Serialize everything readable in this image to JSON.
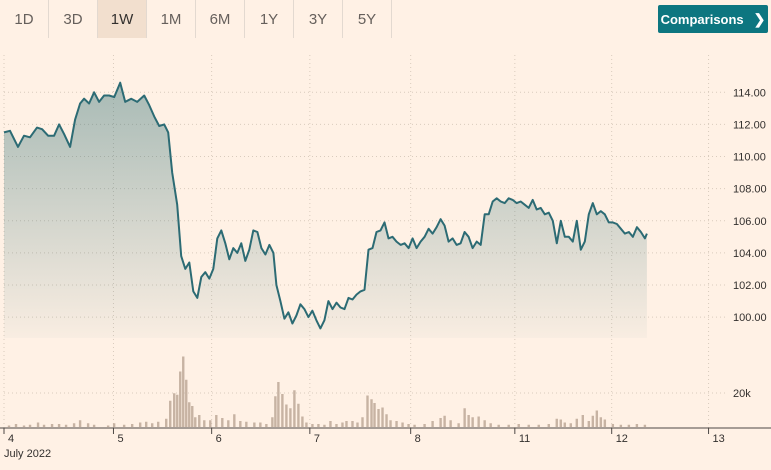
{
  "toolbar": {
    "ranges": [
      "1D",
      "3D",
      "1W",
      "1M",
      "6M",
      "1Y",
      "3Y",
      "5Y"
    ],
    "active_range": "1W",
    "comparisons_label": "Comparisons",
    "comparisons_icon": "chevron-right-icon"
  },
  "colors": {
    "background": "#fff1e5",
    "line": "#2c6b74",
    "volume": "#c7b3a3",
    "button": "#0d7680"
  },
  "chart_data": {
    "type": "line",
    "series_type": "price-with-volume",
    "y_ticks": [
      "100.00",
      "102.00",
      "104.00",
      "106.00",
      "108.00",
      "110.00",
      "112.00",
      "114.00"
    ],
    "ylim": [
      98.7,
      115.7
    ],
    "volume_tick": "20k",
    "x_ticks": [
      "4",
      "5",
      "6",
      "7",
      "8",
      "11",
      "12",
      "13"
    ],
    "x_sublabel": "July 2022",
    "grid": true,
    "price": [
      [
        0.0,
        111.5
      ],
      [
        0.6,
        111.6
      ],
      [
        1.4,
        110.6
      ],
      [
        2.0,
        111.3
      ],
      [
        2.6,
        111.2
      ],
      [
        3.3,
        111.8
      ],
      [
        3.8,
        111.7
      ],
      [
        4.4,
        111.3
      ],
      [
        5.0,
        111.3
      ],
      [
        5.5,
        112.0
      ],
      [
        6.0,
        111.4
      ],
      [
        6.6,
        110.6
      ],
      [
        7.1,
        112.3
      ],
      [
        7.6,
        113.3
      ],
      [
        8.0,
        113.6
      ],
      [
        8.5,
        113.3
      ],
      [
        9.0,
        114.0
      ],
      [
        9.5,
        113.4
      ],
      [
        10.0,
        113.8
      ],
      [
        10.5,
        113.8
      ],
      [
        11.0,
        113.7
      ],
      [
        11.6,
        114.6
      ],
      [
        12.1,
        113.4
      ],
      [
        12.7,
        113.6
      ],
      [
        13.3,
        113.4
      ],
      [
        14.0,
        113.8
      ],
      [
        14.5,
        113.2
      ],
      [
        15.0,
        112.5
      ],
      [
        15.5,
        111.9
      ],
      [
        16.0,
        112.0
      ],
      [
        16.4,
        111.5
      ],
      [
        16.8,
        109.0
      ],
      [
        17.3,
        107.0
      ],
      [
        17.7,
        103.8
      ],
      [
        18.1,
        103.0
      ],
      [
        18.5,
        103.4
      ],
      [
        18.9,
        101.6
      ],
      [
        19.3,
        101.2
      ],
      [
        19.7,
        102.5
      ],
      [
        20.1,
        102.8
      ],
      [
        20.5,
        102.4
      ],
      [
        20.9,
        103.0
      ],
      [
        21.3,
        104.9
      ],
      [
        21.7,
        105.4
      ],
      [
        22.1,
        104.6
      ],
      [
        22.5,
        103.6
      ],
      [
        22.9,
        104.3
      ],
      [
        23.3,
        104.0
      ],
      [
        23.7,
        104.6
      ],
      [
        24.1,
        103.5
      ],
      [
        24.5,
        104.2
      ],
      [
        24.9,
        105.4
      ],
      [
        25.3,
        105.3
      ],
      [
        25.7,
        104.3
      ],
      [
        26.1,
        103.9
      ],
      [
        26.5,
        104.5
      ],
      [
        26.9,
        104.0
      ],
      [
        27.2,
        102.0
      ],
      [
        27.6,
        101.0
      ],
      [
        28.0,
        99.9
      ],
      [
        28.4,
        100.3
      ],
      [
        28.8,
        99.6
      ],
      [
        29.2,
        100.1
      ],
      [
        29.6,
        100.8
      ],
      [
        30.0,
        100.5
      ],
      [
        30.4,
        100.0
      ],
      [
        30.8,
        100.4
      ],
      [
        31.2,
        99.8
      ],
      [
        31.6,
        99.3
      ],
      [
        32.0,
        99.8
      ],
      [
        32.4,
        101.0
      ],
      [
        32.8,
        100.5
      ],
      [
        33.2,
        100.9
      ],
      [
        33.6,
        100.6
      ],
      [
        34.0,
        100.5
      ],
      [
        34.4,
        101.2
      ],
      [
        34.8,
        101.1
      ],
      [
        35.2,
        101.4
      ],
      [
        35.6,
        101.6
      ],
      [
        36.0,
        101.7
      ],
      [
        36.4,
        104.2
      ],
      [
        36.8,
        104.3
      ],
      [
        37.2,
        105.3
      ],
      [
        37.6,
        105.4
      ],
      [
        38.0,
        105.9
      ],
      [
        38.4,
        104.9
      ],
      [
        38.8,
        105.0
      ],
      [
        39.2,
        104.7
      ],
      [
        39.6,
        104.5
      ],
      [
        40.0,
        104.6
      ],
      [
        40.4,
        104.3
      ],
      [
        40.8,
        104.9
      ],
      [
        41.2,
        104.3
      ],
      [
        41.6,
        104.7
      ],
      [
        42.0,
        105.0
      ],
      [
        42.4,
        105.5
      ],
      [
        42.8,
        105.2
      ],
      [
        43.2,
        105.6
      ],
      [
        43.6,
        106.1
      ],
      [
        44.0,
        105.7
      ],
      [
        44.4,
        104.7
      ],
      [
        44.8,
        104.9
      ],
      [
        45.2,
        104.5
      ],
      [
        45.6,
        104.6
      ],
      [
        46.0,
        105.3
      ],
      [
        46.4,
        105.0
      ],
      [
        46.8,
        104.3
      ],
      [
        47.2,
        104.7
      ],
      [
        47.6,
        104.5
      ],
      [
        48.0,
        106.4
      ],
      [
        48.4,
        106.4
      ],
      [
        48.8,
        107.2
      ],
      [
        49.2,
        107.4
      ],
      [
        49.6,
        107.2
      ],
      [
        50.0,
        107.1
      ],
      [
        50.4,
        107.4
      ],
      [
        50.8,
        107.3
      ],
      [
        51.2,
        107.1
      ],
      [
        51.6,
        107.2
      ],
      [
        52.0,
        107.0
      ],
      [
        52.4,
        106.8
      ],
      [
        52.8,
        107.3
      ],
      [
        53.2,
        106.7
      ],
      [
        53.6,
        106.8
      ],
      [
        54.0,
        106.4
      ],
      [
        54.4,
        106.5
      ],
      [
        54.8,
        106.0
      ],
      [
        55.2,
        104.6
      ],
      [
        55.6,
        106.0
      ],
      [
        56.0,
        105.0
      ],
      [
        56.4,
        105.0
      ],
      [
        56.8,
        104.7
      ],
      [
        57.2,
        106.0
      ],
      [
        57.6,
        104.2
      ],
      [
        58.0,
        104.7
      ],
      [
        58.4,
        106.4
      ],
      [
        58.8,
        107.1
      ],
      [
        59.2,
        106.4
      ],
      [
        59.6,
        106.6
      ],
      [
        60.0,
        106.4
      ],
      [
        60.4,
        105.9
      ],
      [
        60.8,
        105.9
      ],
      [
        61.2,
        105.8
      ],
      [
        61.6,
        105.5
      ],
      [
        62.0,
        105.2
      ],
      [
        62.4,
        105.3
      ],
      [
        62.8,
        105.0
      ],
      [
        63.2,
        105.6
      ],
      [
        63.6,
        105.3
      ],
      [
        64.0,
        104.9
      ],
      [
        64.2,
        105.2
      ]
    ],
    "volume": [
      [
        0.5,
        0.2
      ],
      [
        1.2,
        0.4
      ],
      [
        2.0,
        0.2
      ],
      [
        2.6,
        0.3
      ],
      [
        3.4,
        0.6
      ],
      [
        4.0,
        0.3
      ],
      [
        4.8,
        0.4
      ],
      [
        5.5,
        0.4
      ],
      [
        6.2,
        0.3
      ],
      [
        7.0,
        0.5
      ],
      [
        7.6,
        0.9
      ],
      [
        8.4,
        0.5
      ],
      [
        9.0,
        0.3
      ],
      [
        10.4,
        0.2
      ],
      [
        11.0,
        0.5
      ],
      [
        12.0,
        0.3
      ],
      [
        12.8,
        0.4
      ],
      [
        13.6,
        0.6
      ],
      [
        14.2,
        0.7
      ],
      [
        14.8,
        0.5
      ],
      [
        15.4,
        0.7
      ],
      [
        16.2,
        1.1
      ],
      [
        16.6,
        3.5
      ],
      [
        17.0,
        4.5
      ],
      [
        17.3,
        4.3
      ],
      [
        17.6,
        7.4
      ],
      [
        17.9,
        9.4
      ],
      [
        18.2,
        6.3
      ],
      [
        18.5,
        3.3
      ],
      [
        18.8,
        2.8
      ],
      [
        19.1,
        1.3
      ],
      [
        19.5,
        1.6
      ],
      [
        20.0,
        0.9
      ],
      [
        20.6,
        0.9
      ],
      [
        21.2,
        1.6
      ],
      [
        21.8,
        1.2
      ],
      [
        22.4,
        0.9
      ],
      [
        23.0,
        1.7
      ],
      [
        23.6,
        0.8
      ],
      [
        24.2,
        0.7
      ],
      [
        25.0,
        0.6
      ],
      [
        25.6,
        0.6
      ],
      [
        26.2,
        0.4
      ],
      [
        26.8,
        1.3
      ],
      [
        27.1,
        4.1
      ],
      [
        27.4,
        6.0
      ],
      [
        27.8,
        4.4
      ],
      [
        28.2,
        3.0
      ],
      [
        28.6,
        2.5
      ],
      [
        29.0,
        4.9
      ],
      [
        29.4,
        3.1
      ],
      [
        29.8,
        1.4
      ],
      [
        30.2,
        0.6
      ],
      [
        30.8,
        0.4
      ],
      [
        31.4,
        0.4
      ],
      [
        32.0,
        0.3
      ],
      [
        32.6,
        0.8
      ],
      [
        33.2,
        0.4
      ],
      [
        33.8,
        0.6
      ],
      [
        34.2,
        0.8
      ],
      [
        34.8,
        0.8
      ],
      [
        35.3,
        0.6
      ],
      [
        35.8,
        1.3
      ],
      [
        36.3,
        4.2
      ],
      [
        36.7,
        3.7
      ],
      [
        37.0,
        3.2
      ],
      [
        37.4,
        2.4
      ],
      [
        37.8,
        2.6
      ],
      [
        38.2,
        1.7
      ],
      [
        38.6,
        0.9
      ],
      [
        39.2,
        0.8
      ],
      [
        39.8,
        0.6
      ],
      [
        40.4,
        0.4
      ],
      [
        41.0,
        0.3
      ],
      [
        42.0,
        0.4
      ],
      [
        42.8,
        0.8
      ],
      [
        43.6,
        1.2
      ],
      [
        44.0,
        1.5
      ],
      [
        44.6,
        0.9
      ],
      [
        45.4,
        0.5
      ],
      [
        46.0,
        2.5
      ],
      [
        46.4,
        1.6
      ],
      [
        46.8,
        1.3
      ],
      [
        47.4,
        1.4
      ],
      [
        48.0,
        0.9
      ],
      [
        48.6,
        0.5
      ],
      [
        49.4,
        0.3
      ],
      [
        50.4,
        0.3
      ],
      [
        51.4,
        0.4
      ],
      [
        52.4,
        0.3
      ],
      [
        53.4,
        0.3
      ],
      [
        54.4,
        0.4
      ],
      [
        55.2,
        1.1
      ],
      [
        55.6,
        1.0
      ],
      [
        56.0,
        0.6
      ],
      [
        56.6,
        0.5
      ],
      [
        57.2,
        1.1
      ],
      [
        57.8,
        1.6
      ],
      [
        58.4,
        0.8
      ],
      [
        58.8,
        1.5
      ],
      [
        59.2,
        2.2
      ],
      [
        59.6,
        1.3
      ],
      [
        60.0,
        1.0
      ],
      [
        60.8,
        0.4
      ],
      [
        61.6,
        0.3
      ],
      [
        62.4,
        0.3
      ],
      [
        63.2,
        0.4
      ],
      [
        64.0,
        0.3
      ]
    ],
    "volume_max": 10
  }
}
